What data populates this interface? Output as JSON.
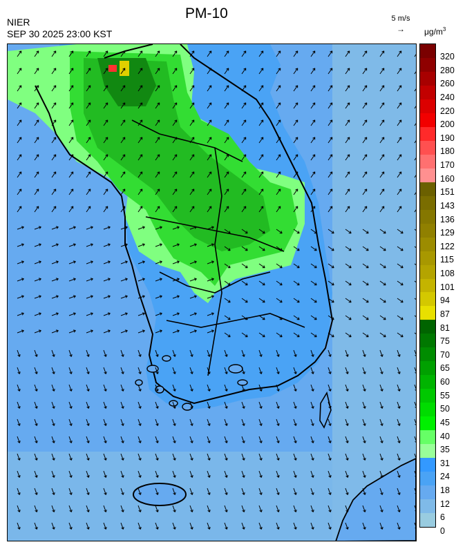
{
  "header": {
    "title": "PM-10",
    "org": "NIER",
    "timestamp": "SEP 30 2025 23:00 KST",
    "wind_scale_label": "5 m/s",
    "unit_base": "μg/m",
    "unit_sup": "3"
  },
  "legend": {
    "ticks": [
      "320",
      "280",
      "260",
      "240",
      "220",
      "200",
      "190",
      "180",
      "170",
      "160",
      "151",
      "143",
      "136",
      "129",
      "122",
      "115",
      "108",
      "101",
      "94",
      "87",
      "81",
      "75",
      "70",
      "65",
      "60",
      "55",
      "50",
      "45",
      "40",
      "35",
      "31",
      "24",
      "18",
      "12",
      "6",
      "0"
    ],
    "colors": [
      "#7a0000",
      "#8f0000",
      "#a80000",
      "#c20000",
      "#dc0000",
      "#f20000",
      "#ff2a2a",
      "#ff5050",
      "#ff7070",
      "#ff9090",
      "#6b6000",
      "#7a6d00",
      "#857700",
      "#908000",
      "#9c8c00",
      "#a89800",
      "#b4a400",
      "#c4b400",
      "#d4c800",
      "#e8e000",
      "#006400",
      "#007800",
      "#008c00",
      "#00a000",
      "#00b400",
      "#00c800",
      "#00dc00",
      "#00f000",
      "#66ff66",
      "#99ff99",
      "#3399ff",
      "#4aa3f5",
      "#66aaf0",
      "#7fbae8",
      "#99cce0"
    ]
  },
  "map": {
    "colors": {
      "sea_far": "#7fbae8",
      "sea": "#66aaf0",
      "low": "#4aa3f5",
      "light_green": "#80ff80",
      "green": "#33dd33",
      "mid_green": "#22bb22",
      "dark_green": "#118811",
      "hotspot_yellow": "#e0d000",
      "hotspot_red": "#ff3030"
    }
  }
}
